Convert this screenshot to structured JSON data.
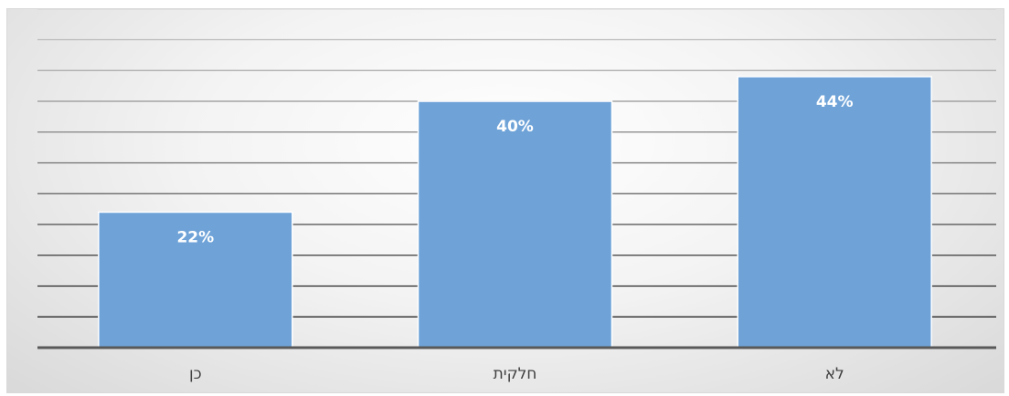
{
  "chart_data": {
    "type": "bar",
    "categories": [
      "כן",
      "חלקית",
      "לא"
    ],
    "values": [
      22,
      40,
      44
    ],
    "data_labels": [
      "22%",
      "40%",
      "44%"
    ],
    "title": "",
    "xlabel": "",
    "ylabel": "",
    "ylim": [
      0,
      55
    ],
    "grid": true,
    "legend": "none",
    "colors": {
      "bar": "#6fa3d8",
      "bar_border": "#ffffff",
      "axis": "#595959"
    }
  }
}
